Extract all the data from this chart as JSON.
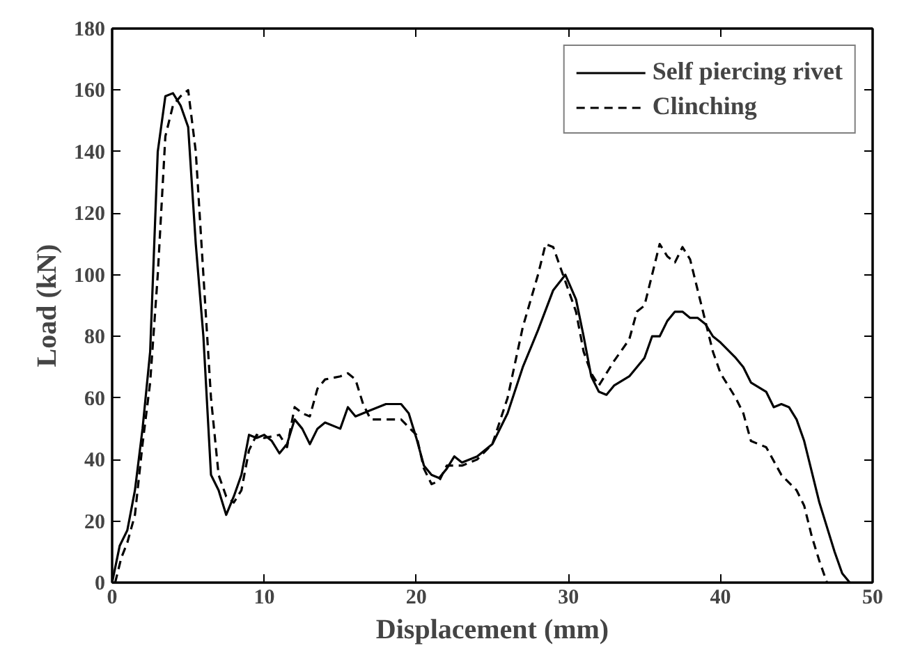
{
  "chart_data": {
    "type": "line",
    "xlabel": "Displacement (mm)",
    "ylabel": "Load (kN)",
    "xlim": [
      0,
      50
    ],
    "ylim": [
      0,
      180
    ],
    "xticks": [
      0,
      10,
      20,
      30,
      40,
      50
    ],
    "yticks": [
      0,
      20,
      40,
      60,
      80,
      100,
      120,
      140,
      160,
      180
    ],
    "grid": false,
    "legend": "top right",
    "series": [
      {
        "name": "Self piercing rivet",
        "color": "#000000",
        "line_style": "solid",
        "x": [
          0,
          0.5,
          1,
          1.5,
          2,
          2.5,
          3,
          3.5,
          4,
          4.5,
          5,
          5.5,
          6,
          6.5,
          7,
          7.5,
          8,
          8.5,
          9,
          9.5,
          10,
          10.5,
          11,
          11.5,
          12,
          12.5,
          13,
          13.5,
          14,
          15,
          15.5,
          16,
          17,
          18,
          19,
          19.5,
          20,
          20.5,
          21,
          21.5,
          22,
          22.5,
          23,
          24,
          25,
          26,
          27,
          28,
          29,
          29.8,
          30.5,
          31,
          31.5,
          32,
          32.5,
          33,
          34,
          34.5,
          35,
          35.5,
          36,
          36.5,
          37,
          37.5,
          38,
          38.5,
          39,
          39.5,
          40,
          41,
          41.5,
          42,
          43,
          43.5,
          44,
          44.5,
          45,
          45.5,
          46,
          46.5,
          47,
          47.5,
          48,
          48.5
        ],
        "values": [
          0,
          12,
          17,
          30,
          50,
          75,
          140,
          158,
          159,
          155,
          148,
          110,
          80,
          35,
          30,
          22,
          28,
          35,
          48,
          47,
          48,
          46,
          42,
          45,
          53,
          50,
          45,
          50,
          52,
          50,
          57,
          54,
          56,
          58,
          58,
          55,
          47,
          38,
          35,
          34,
          37,
          41,
          39,
          41,
          45,
          55,
          70,
          82,
          95,
          100,
          92,
          80,
          67,
          62,
          61,
          64,
          67,
          70,
          73,
          80,
          80,
          85,
          88,
          88,
          86,
          86,
          84,
          80,
          78,
          73,
          70,
          65,
          62,
          57,
          58,
          57,
          53,
          46,
          36,
          26,
          18,
          10,
          3,
          0
        ]
      },
      {
        "name": "Clinching",
        "color": "#000000",
        "line_style": "dashed",
        "x": [
          0.2,
          0.6,
          1,
          1.5,
          2,
          2.5,
          3,
          3.5,
          4,
          4.5,
          5,
          5.5,
          6,
          6.5,
          7,
          7.5,
          8,
          8.5,
          9,
          9.5,
          10,
          11,
          11.5,
          12,
          12.5,
          13,
          13.5,
          14,
          15,
          15.5,
          16,
          16.5,
          17,
          18,
          19,
          20,
          20.5,
          21,
          21.5,
          22,
          23,
          24,
          25,
          26,
          27,
          28,
          28.5,
          29,
          30,
          30.5,
          31,
          31.5,
          32,
          33,
          34,
          34.5,
          35,
          35.5,
          36,
          36.5,
          37,
          37.5,
          38,
          38.5,
          39,
          39.5,
          40,
          41,
          41.5,
          42,
          43,
          44,
          45,
          45.5,
          46,
          46.5,
          47
        ],
        "values": [
          0,
          8,
          13,
          22,
          45,
          65,
          100,
          145,
          155,
          158,
          160,
          140,
          100,
          60,
          35,
          28,
          26,
          30,
          43,
          48,
          47,
          48,
          44,
          57,
          55,
          54,
          63,
          66,
          67,
          68,
          66,
          58,
          53,
          53,
          53,
          48,
          37,
          32,
          33,
          38,
          38,
          40,
          45,
          60,
          83,
          100,
          110,
          109,
          95,
          88,
          75,
          68,
          64,
          72,
          79,
          88,
          90,
          100,
          110,
          106,
          104,
          109,
          105,
          95,
          85,
          75,
          68,
          60,
          55,
          46,
          44,
          35,
          30,
          25,
          15,
          7,
          0
        ]
      }
    ]
  }
}
